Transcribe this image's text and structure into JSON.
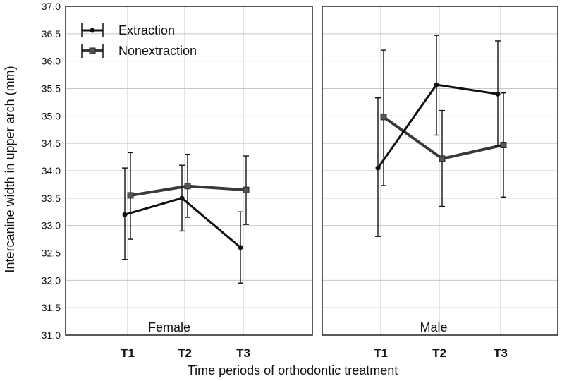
{
  "chart_data": {
    "type": "line",
    "ylabel": "Intercanine width in upper arch (mm)",
    "xlabel": "Time periods of orthodontic treatment",
    "ylim": [
      31.0,
      37.0
    ],
    "yticks": [
      "31.0",
      "31.5",
      "32.0",
      "32.5",
      "33.0",
      "33.5",
      "34.0",
      "34.5",
      "35.0",
      "35.5",
      "36.0",
      "36.5",
      "37.0"
    ],
    "categories": [
      "T1",
      "T2",
      "T3"
    ],
    "grid": true,
    "legend": {
      "position": "top-left",
      "entries": [
        "Extraction",
        "Nonextraction"
      ]
    },
    "colors": {
      "Extraction": "#111111",
      "Nonextraction": "#3a3a3a"
    },
    "panels": [
      {
        "label": "Female",
        "series": [
          {
            "name": "Extraction",
            "values": [
              33.2,
              33.5,
              32.6
            ],
            "lower": [
              32.38,
              32.9,
              31.95
            ],
            "upper": [
              34.05,
              34.1,
              33.25
            ]
          },
          {
            "name": "Nonextraction",
            "values": [
              33.55,
              33.72,
              33.65
            ],
            "lower": [
              32.75,
              33.15,
              33.02
            ],
            "upper": [
              34.33,
              34.3,
              34.27
            ]
          }
        ]
      },
      {
        "label": "Male",
        "series": [
          {
            "name": "Extraction",
            "values": [
              34.05,
              35.57,
              35.4
            ],
            "lower": [
              32.8,
              34.65,
              34.45
            ],
            "upper": [
              35.33,
              36.47,
              36.37
            ]
          },
          {
            "name": "Nonextraction",
            "values": [
              34.98,
              34.22,
              34.47
            ],
            "lower": [
              33.73,
              33.35,
              33.52
            ],
            "upper": [
              36.2,
              35.1,
              35.42
            ]
          }
        ]
      }
    ]
  }
}
